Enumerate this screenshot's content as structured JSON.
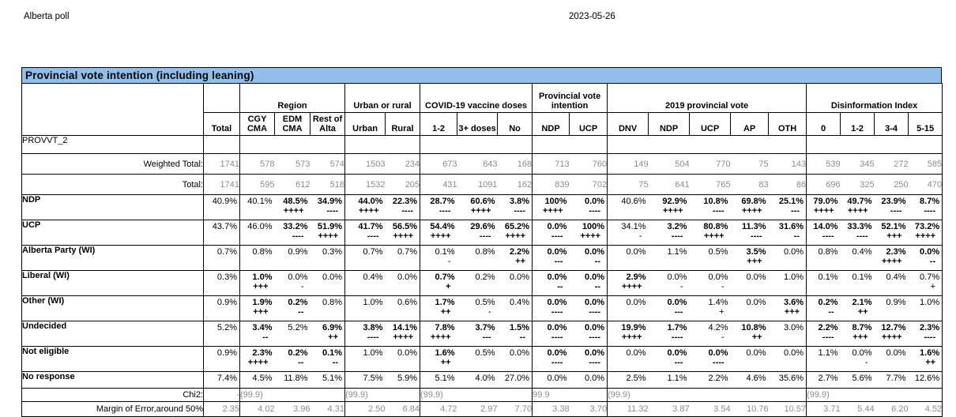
{
  "page": {
    "title_left": "Alberta poll",
    "date": "2023-05-26"
  },
  "table": {
    "title": "Provincial vote intention (including leaning)",
    "variable": "PROVVT_2",
    "colors": {
      "title_bg": "#8fbfea",
      "muted_text": "#8c8c8c"
    },
    "groups": [
      {
        "label": "",
        "cols": [
          "Total"
        ]
      },
      {
        "label": "Region",
        "cols": [
          "CGY CMA",
          "EDM CMA",
          "Rest of Alta"
        ]
      },
      {
        "label": "Urban or rural",
        "cols": [
          "Urban",
          "Rural"
        ]
      },
      {
        "label": "COVID-19 vaccine doses",
        "cols": [
          "1-2",
          "3+ doses",
          "No"
        ]
      },
      {
        "label": "Provincial vote intention",
        "cols": [
          "NDP",
          "UCP"
        ]
      },
      {
        "label": "2019 provincial vote",
        "cols": [
          "DNV",
          "NDP",
          "UCP",
          "AP",
          "OTH"
        ]
      },
      {
        "label": "Disinformation Index",
        "cols": [
          "0",
          "1-2",
          "3-4",
          "5-15"
        ]
      }
    ],
    "count_rows": [
      {
        "label": "Weighted Total:",
        "values": [
          "1741",
          "578",
          "573",
          "574",
          "1503",
          "234",
          "673",
          "843",
          "168",
          "713",
          "760",
          "149",
          "504",
          "770",
          "75",
          "143",
          "539",
          "345",
          "272",
          "585"
        ]
      },
      {
        "label": "Total:",
        "values": [
          "1741",
          "595",
          "612",
          "518",
          "1532",
          "205",
          "431",
          "1091",
          "162",
          "839",
          "702",
          "75",
          "641",
          "765",
          "83",
          "86",
          "696",
          "325",
          "250",
          "470"
        ]
      }
    ],
    "data_rows": [
      {
        "label": "NDP",
        "cells": [
          {
            "v": "40.9%"
          },
          {
            "v": "40.1%"
          },
          {
            "v": "48.5%",
            "b": 1,
            "m": "++++"
          },
          {
            "v": "34.9%",
            "b": 1,
            "m": "----"
          },
          {
            "v": "44.0%",
            "b": 1,
            "m": "++++"
          },
          {
            "v": "22.3%",
            "b": 1,
            "m": "----"
          },
          {
            "v": "28.7%",
            "b": 1,
            "m": "----"
          },
          {
            "v": "60.6%",
            "b": 1,
            "m": "++++"
          },
          {
            "v": "3.8%",
            "b": 1,
            "m": "----"
          },
          {
            "v": "100%",
            "b": 1,
            "m": "++++"
          },
          {
            "v": "0.0%",
            "b": 1,
            "m": "----"
          },
          {
            "v": "40.6%"
          },
          {
            "v": "92.9%",
            "b": 1,
            "m": "++++"
          },
          {
            "v": "10.8%",
            "b": 1,
            "m": "----"
          },
          {
            "v": "69.8%",
            "b": 1,
            "m": "++++"
          },
          {
            "v": "25.1%",
            "b": 1,
            "m": "---"
          },
          {
            "v": "79.0%",
            "b": 1,
            "m": "++++"
          },
          {
            "v": "49.7%",
            "b": 1,
            "m": "++++"
          },
          {
            "v": "23.9%",
            "b": 1,
            "m": "----"
          },
          {
            "v": "8.7%",
            "b": 1,
            "m": "----"
          }
        ]
      },
      {
        "label": "UCP",
        "cells": [
          {
            "v": "43.7%"
          },
          {
            "v": "46.0%"
          },
          {
            "v": "33.2%",
            "b": 1,
            "m": "----"
          },
          {
            "v": "51.9%",
            "b": 1,
            "m": "++++"
          },
          {
            "v": "41.7%",
            "b": 1,
            "m": "----"
          },
          {
            "v": "56.5%",
            "b": 1,
            "m": "++++"
          },
          {
            "v": "54.4%",
            "b": 1,
            "m": "++++"
          },
          {
            "v": "29.6%",
            "b": 1,
            "m": "----"
          },
          {
            "v": "65.2%",
            "b": 1,
            "m": "++++"
          },
          {
            "v": "0.0%",
            "b": 1,
            "m": "----"
          },
          {
            "v": "100%",
            "b": 1,
            "m": "++++"
          },
          {
            "v": "34.1%",
            "m": "-"
          },
          {
            "v": "3.2%",
            "b": 1,
            "m": "----"
          },
          {
            "v": "80.8%",
            "b": 1,
            "m": "++++"
          },
          {
            "v": "11.3%",
            "b": 1,
            "m": "----"
          },
          {
            "v": "31.6%",
            "b": 1,
            "m": "--"
          },
          {
            "v": "14.0%",
            "b": 1,
            "m": "----"
          },
          {
            "v": "33.3%",
            "b": 1,
            "m": "----"
          },
          {
            "v": "52.1%",
            "b": 1,
            "m": "+++"
          },
          {
            "v": "73.2%",
            "b": 1,
            "m": "++++"
          }
        ]
      },
      {
        "label": "Alberta Party (WI)",
        "cells": [
          {
            "v": "0.7%"
          },
          {
            "v": "0.8%"
          },
          {
            "v": "0.9%"
          },
          {
            "v": "0.3%"
          },
          {
            "v": "0.7%"
          },
          {
            "v": "0.7%"
          },
          {
            "v": "0.1%",
            "m": "-"
          },
          {
            "v": "0.8%"
          },
          {
            "v": "2.2%",
            "b": 1,
            "m": "++"
          },
          {
            "v": "0.0%",
            "b": 1,
            "m": "---"
          },
          {
            "v": "0.0%",
            "b": 1,
            "m": "--"
          },
          {
            "v": "0.0%"
          },
          {
            "v": "1.1%"
          },
          {
            "v": "0.5%"
          },
          {
            "v": "3.5%",
            "b": 1,
            "m": "+++"
          },
          {
            "v": "0.0%"
          },
          {
            "v": "0.8%"
          },
          {
            "v": "0.4%"
          },
          {
            "v": "2.3%",
            "b": 1,
            "m": "++++"
          },
          {
            "v": "0.0%",
            "b": 1,
            "m": "--"
          }
        ]
      },
      {
        "label": "Liberal (WI)",
        "cells": [
          {
            "v": "0.3%"
          },
          {
            "v": "1.0%",
            "b": 1,
            "m": "+++"
          },
          {
            "v": "0.0%",
            "m": "-"
          },
          {
            "v": "0.0%"
          },
          {
            "v": "0.4%"
          },
          {
            "v": "0.0%"
          },
          {
            "v": "0.7%",
            "b": 1,
            "m": "+"
          },
          {
            "v": "0.2%"
          },
          {
            "v": "0.0%"
          },
          {
            "v": "0.0%",
            "b": 1,
            "m": "--"
          },
          {
            "v": "0.0%",
            "b": 1,
            "m": "--"
          },
          {
            "v": "2.9%",
            "b": 1,
            "m": "++++"
          },
          {
            "v": "0.0%",
            "m": "-"
          },
          {
            "v": "0.0%",
            "m": "-"
          },
          {
            "v": "0.0%"
          },
          {
            "v": "1.0%"
          },
          {
            "v": "0.1%"
          },
          {
            "v": "0.1%"
          },
          {
            "v": "0.4%"
          },
          {
            "v": "0.7%",
            "m": "+"
          }
        ]
      },
      {
        "label": "Other (WI)",
        "cells": [
          {
            "v": "0.9%"
          },
          {
            "v": "1.9%",
            "b": 1,
            "m": "+++"
          },
          {
            "v": "0.2%",
            "b": 1,
            "m": "--"
          },
          {
            "v": "0.8%"
          },
          {
            "v": "1.0%"
          },
          {
            "v": "0.6%"
          },
          {
            "v": "1.7%",
            "b": 1,
            "m": "++"
          },
          {
            "v": "0.5%",
            "m": "-"
          },
          {
            "v": "0.4%"
          },
          {
            "v": "0.0%",
            "b": 1,
            "m": "----"
          },
          {
            "v": "0.0%",
            "b": 1,
            "m": "----"
          },
          {
            "v": "0.0%"
          },
          {
            "v": "0.0%",
            "b": 1,
            "m": "---"
          },
          {
            "v": "1.4%",
            "m": "+"
          },
          {
            "v": "0.0%"
          },
          {
            "v": "3.6%",
            "b": 1,
            "m": "+++"
          },
          {
            "v": "0.2%",
            "b": 1,
            "m": "--"
          },
          {
            "v": "2.1%",
            "b": 1,
            "m": "++"
          },
          {
            "v": "0.9%"
          },
          {
            "v": "1.0%"
          }
        ]
      },
      {
        "label": "Undecided",
        "cells": [
          {
            "v": "5.2%"
          },
          {
            "v": "3.4%",
            "b": 1,
            "m": "--"
          },
          {
            "v": "5.2%"
          },
          {
            "v": "6.9%",
            "b": 1,
            "m": "++"
          },
          {
            "v": "3.8%",
            "b": 1,
            "m": "----"
          },
          {
            "v": "14.1%",
            "b": 1,
            "m": "++++"
          },
          {
            "v": "7.8%",
            "b": 1,
            "m": "++++"
          },
          {
            "v": "3.7%",
            "b": 1,
            "m": "---"
          },
          {
            "v": "1.5%",
            "b": 1,
            "m": "--"
          },
          {
            "v": "0.0%",
            "b": 1,
            "m": "----"
          },
          {
            "v": "0.0%",
            "b": 1,
            "m": "----"
          },
          {
            "v": "19.9%",
            "b": 1,
            "m": "++++"
          },
          {
            "v": "1.7%",
            "b": 1,
            "m": "----"
          },
          {
            "v": "4.2%",
            "m": "-"
          },
          {
            "v": "10.8%",
            "b": 1,
            "m": "++"
          },
          {
            "v": "3.0%"
          },
          {
            "v": "2.2%",
            "b": 1,
            "m": "----"
          },
          {
            "v": "8.7%",
            "b": 1,
            "m": "+++"
          },
          {
            "v": "12.7%",
            "b": 1,
            "m": "++++"
          },
          {
            "v": "2.3%",
            "b": 1,
            "m": "----"
          }
        ]
      },
      {
        "label": "Not eligible",
        "cells": [
          {
            "v": "0.9%"
          },
          {
            "v": "2.3%",
            "b": 1,
            "m": "++++"
          },
          {
            "v": "0.2%",
            "b": 1,
            "m": "--"
          },
          {
            "v": "0.1%",
            "b": 1,
            "m": "--"
          },
          {
            "v": "1.0%"
          },
          {
            "v": "0.0%"
          },
          {
            "v": "1.6%",
            "b": 1,
            "m": "++"
          },
          {
            "v": "0.5%"
          },
          {
            "v": "0.0%"
          },
          {
            "v": "0.0%",
            "b": 1,
            "m": "----"
          },
          {
            "v": "0.0%",
            "b": 1,
            "m": "----"
          },
          {
            "v": "0.0%"
          },
          {
            "v": "0.0%",
            "b": 1,
            "m": "---"
          },
          {
            "v": "0.0%",
            "b": 1,
            "m": "----"
          },
          {
            "v": "0.0%"
          },
          {
            "v": "0.0%"
          },
          {
            "v": "1.1%"
          },
          {
            "v": "0.0%",
            "m": "-"
          },
          {
            "v": "0.0%"
          },
          {
            "v": "1.6%",
            "b": 1,
            "m": "++"
          }
        ]
      },
      {
        "label": "No response",
        "cells": [
          {
            "v": "7.4%"
          },
          {
            "v": "4.5%"
          },
          {
            "v": "11.8%"
          },
          {
            "v": "5.1%"
          },
          {
            "v": "7.5%"
          },
          {
            "v": "5.9%"
          },
          {
            "v": "5.1%"
          },
          {
            "v": "4.0%"
          },
          {
            "v": "27.0%"
          },
          {
            "v": "0.0%"
          },
          {
            "v": "0.0%"
          },
          {
            "v": "2.5%"
          },
          {
            "v": "1.1%"
          },
          {
            "v": "2.2%"
          },
          {
            "v": "4.6%"
          },
          {
            "v": "35.6%"
          },
          {
            "v": "2.7%"
          },
          {
            "v": "5.6%"
          },
          {
            "v": "7.7%"
          },
          {
            "v": "12.6%"
          }
        ]
      }
    ],
    "chi2_row": {
      "label": "Chi2:",
      "total": "-",
      "group_values": [
        "(99.9)",
        "(99.9)",
        "(99.9)",
        "99.9",
        "(99.9)",
        "(99.9)"
      ]
    },
    "moe_row": {
      "label": "Margin of Error,around 50%",
      "values": [
        "2.35",
        "4.02",
        "3.96",
        "4.31",
        "2.50",
        "6.84",
        "4.72",
        "2.97",
        "7.70",
        "3.38",
        "3.70",
        "11.32",
        "3.87",
        "3.54",
        "10.76",
        "10.57",
        "3.71",
        "5.44",
        "6.20",
        "4.52"
      ]
    }
  }
}
